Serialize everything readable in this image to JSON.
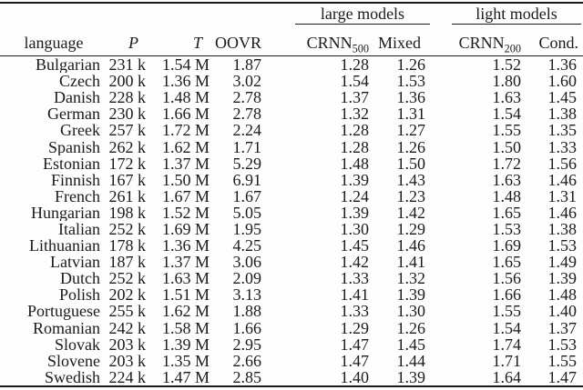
{
  "colors": {
    "text": "#1b1b1b",
    "rule": "#1b1b1b",
    "background": "#fdfdfd"
  },
  "table": {
    "groups": [
      {
        "label": "large models"
      },
      {
        "label": "light models"
      }
    ],
    "headers": {
      "language": "language",
      "p": "P",
      "t": "T",
      "oovr": "OOVR",
      "crnn500": {
        "text": "CRNN",
        "sub": "500"
      },
      "mixed": "Mixed",
      "crnn200": {
        "text": "CRNN",
        "sub": "200"
      },
      "cond": "Cond."
    },
    "rows": [
      {
        "language": "Bulgarian",
        "p": "231 k",
        "t": "1.54 M",
        "oovr": "1.87",
        "crnn500": "1.28",
        "mixed": "1.26",
        "crnn200": "1.52",
        "cond": "1.36"
      },
      {
        "language": "Czech",
        "p": "200 k",
        "t": "1.36 M",
        "oovr": "3.02",
        "crnn500": "1.54",
        "mixed": "1.53",
        "crnn200": "1.80",
        "cond": "1.60"
      },
      {
        "language": "Danish",
        "p": "228 k",
        "t": "1.48 M",
        "oovr": "2.78",
        "crnn500": "1.37",
        "mixed": "1.36",
        "crnn200": "1.63",
        "cond": "1.45"
      },
      {
        "language": "German",
        "p": "230 k",
        "t": "1.66 M",
        "oovr": "2.78",
        "crnn500": "1.32",
        "mixed": "1.31",
        "crnn200": "1.54",
        "cond": "1.38"
      },
      {
        "language": "Greek",
        "p": "257 k",
        "t": "1.72 M",
        "oovr": "2.24",
        "crnn500": "1.28",
        "mixed": "1.27",
        "crnn200": "1.55",
        "cond": "1.35"
      },
      {
        "language": "Spanish",
        "p": "262 k",
        "t": "1.62 M",
        "oovr": "1.71",
        "crnn500": "1.28",
        "mixed": "1.26",
        "crnn200": "1.50",
        "cond": "1.33"
      },
      {
        "language": "Estonian",
        "p": "172 k",
        "t": "1.37 M",
        "oovr": "5.29",
        "crnn500": "1.48",
        "mixed": "1.50",
        "crnn200": "1.72",
        "cond": "1.56"
      },
      {
        "language": "Finnish",
        "p": "167 k",
        "t": "1.50 M",
        "oovr": "6.91",
        "crnn500": "1.39",
        "mixed": "1.43",
        "crnn200": "1.63",
        "cond": "1.46"
      },
      {
        "language": "French",
        "p": "261 k",
        "t": "1.67 M",
        "oovr": "1.67",
        "crnn500": "1.24",
        "mixed": "1.23",
        "crnn200": "1.48",
        "cond": "1.31"
      },
      {
        "language": "Hungarian",
        "p": "198 k",
        "t": "1.52 M",
        "oovr": "5.05",
        "crnn500": "1.39",
        "mixed": "1.42",
        "crnn200": "1.65",
        "cond": "1.46"
      },
      {
        "language": "Italian",
        "p": "252 k",
        "t": "1.69 M",
        "oovr": "1.95",
        "crnn500": "1.30",
        "mixed": "1.29",
        "crnn200": "1.53",
        "cond": "1.38"
      },
      {
        "language": "Lithuanian",
        "p": "178 k",
        "t": "1.36 M",
        "oovr": "4.25",
        "crnn500": "1.45",
        "mixed": "1.46",
        "crnn200": "1.69",
        "cond": "1.53"
      },
      {
        "language": "Latvian",
        "p": "187 k",
        "t": "1.37 M",
        "oovr": "3.06",
        "crnn500": "1.42",
        "mixed": "1.41",
        "crnn200": "1.65",
        "cond": "1.49"
      },
      {
        "language": "Dutch",
        "p": "252 k",
        "t": "1.63 M",
        "oovr": "2.09",
        "crnn500": "1.33",
        "mixed": "1.32",
        "crnn200": "1.56",
        "cond": "1.39"
      },
      {
        "language": "Polish",
        "p": "202 k",
        "t": "1.51 M",
        "oovr": "3.13",
        "crnn500": "1.41",
        "mixed": "1.39",
        "crnn200": "1.66",
        "cond": "1.48"
      },
      {
        "language": "Portuguese",
        "p": "255 k",
        "t": "1.62 M",
        "oovr": "1.88",
        "crnn500": "1.33",
        "mixed": "1.30",
        "crnn200": "1.55",
        "cond": "1.40"
      },
      {
        "language": "Romanian",
        "p": "242 k",
        "t": "1.58 M",
        "oovr": "1.66",
        "crnn500": "1.29",
        "mixed": "1.26",
        "crnn200": "1.54",
        "cond": "1.37"
      },
      {
        "language": "Slovak",
        "p": "203 k",
        "t": "1.39 M",
        "oovr": "2.95",
        "crnn500": "1.47",
        "mixed": "1.45",
        "crnn200": "1.74",
        "cond": "1.53"
      },
      {
        "language": "Slovene",
        "p": "203 k",
        "t": "1.35 M",
        "oovr": "2.66",
        "crnn500": "1.47",
        "mixed": "1.44",
        "crnn200": "1.71",
        "cond": "1.55"
      },
      {
        "language": "Swedish",
        "p": "224 k",
        "t": "1.47 M",
        "oovr": "2.85",
        "crnn500": "1.40",
        "mixed": "1.39",
        "crnn200": "1.64",
        "cond": "1.47"
      }
    ]
  }
}
